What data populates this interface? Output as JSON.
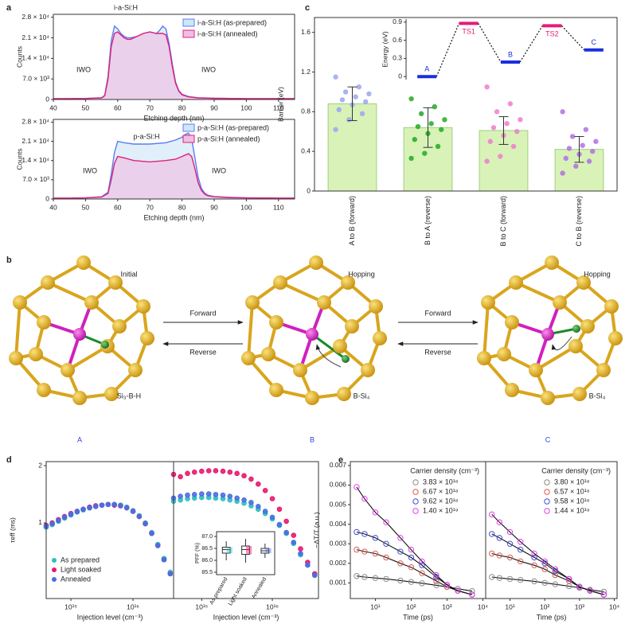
{
  "chart_data": [
    {
      "type": "area",
      "panel": "a",
      "xlabel": "Etching depth (nm)",
      "ylabel": "Counts",
      "xlim": [
        40,
        115
      ],
      "xticks": [
        40,
        50,
        60,
        70,
        80,
        90,
        100,
        110
      ],
      "ylim": [
        0,
        29000
      ],
      "yticks": [
        0,
        {
          "value": 7000,
          "label": "7.0 × 10³"
        },
        {
          "value": 14000,
          "label": "1.4 × 10⁴"
        },
        {
          "value": 21000,
          "label": "2.1 × 10⁴"
        },
        {
          "value": 28000,
          "label": "2.8 × 10⁴"
        }
      ],
      "legend": "upper right",
      "annotations": [
        "IWO",
        "i-a-Si:H",
        "IWO"
      ],
      "x": [
        40,
        45,
        50,
        55,
        56,
        57,
        58,
        59,
        60,
        61,
        62,
        63,
        64,
        66,
        68,
        70,
        72,
        73,
        74,
        75,
        76,
        77,
        78,
        79,
        80,
        82,
        85,
        90,
        100,
        110,
        115
      ],
      "series": [
        {
          "name": "i-a-Si:H (as-prepared)",
          "color": "#5b7cf0",
          "fill": "#cfe6f7",
          "values": [
            300,
            300,
            350,
            600,
            1500,
            8000,
            20000,
            25000,
            24000,
            22500,
            21500,
            21000,
            21000,
            21500,
            22500,
            23000,
            22500,
            23500,
            25000,
            24000,
            19000,
            12000,
            6000,
            3000,
            1800,
            1000,
            600,
            400,
            300,
            300,
            300
          ]
        },
        {
          "name": "i-a-Si:H (annealed)",
          "color": "#e0207a",
          "fill": "#efbfe3",
          "values": [
            300,
            300,
            350,
            550,
            1300,
            7000,
            18000,
            22500,
            23000,
            22000,
            21000,
            20500,
            20500,
            21500,
            22500,
            23000,
            22500,
            22500,
            22500,
            22000,
            18000,
            11000,
            5500,
            2800,
            1600,
            900,
            550,
            400,
            300,
            300,
            300
          ]
        }
      ]
    },
    {
      "type": "area",
      "xlabel": "Etching depth (nm)",
      "ylabel": "Counts",
      "xlim": [
        40,
        115
      ],
      "xticks": [
        40,
        50,
        60,
        70,
        80,
        90,
        100,
        110
      ],
      "ylim": [
        0,
        29000
      ],
      "yticks": [
        0,
        {
          "value": 7000,
          "label": "7.0 × 10³"
        },
        {
          "value": 14000,
          "label": "1.4 × 10⁴"
        },
        {
          "value": 21000,
          "label": "2.1 × 10⁴"
        },
        {
          "value": 28000,
          "label": "2.8 × 10⁴"
        }
      ],
      "legend": "upper right",
      "annotations": [
        "IWO",
        "p-a-Si:H",
        "IWO"
      ],
      "x": [
        40,
        45,
        50,
        55,
        57,
        58,
        59,
        60,
        62,
        65,
        70,
        75,
        78,
        80,
        81,
        82,
        83,
        84,
        85,
        86,
        87,
        88,
        90,
        95,
        100,
        110,
        115
      ],
      "series": [
        {
          "name": "p-a-Si:H (as-prepared)",
          "color": "#5b7cf0",
          "fill": "#cfe6f7",
          "values": [
            300,
            300,
            400,
            800,
            2500,
            9000,
            17000,
            21000,
            20500,
            20000,
            20000,
            20500,
            21500,
            22500,
            23500,
            24000,
            22000,
            15000,
            8000,
            4000,
            2200,
            1400,
            900,
            600,
            400,
            300,
            300
          ]
        },
        {
          "name": "p-a-Si:H (annealed)",
          "color": "#e0207a",
          "fill": "#efbfe3",
          "values": [
            300,
            300,
            400,
            700,
            2000,
            7000,
            13000,
            15500,
            15000,
            14000,
            13500,
            14000,
            14500,
            15500,
            16000,
            16500,
            15500,
            11000,
            6000,
            3200,
            1800,
            1200,
            800,
            500,
            400,
            300,
            300
          ]
        }
      ]
    },
    {
      "type": "bar",
      "panel": "c",
      "ylabel": "Barrier (eV)",
      "color": "#d8f2b8",
      "ylim": [
        0,
        1.75
      ],
      "yticks": [
        0,
        0.4,
        0.8,
        1.2,
        1.6
      ],
      "categories": [
        "A to B (forward)",
        "B to A (reverse)",
        "B to C (forward)",
        "C to B (reverse)"
      ],
      "values": [
        0.88,
        0.64,
        0.61,
        0.42
      ],
      "errors": [
        0.17,
        0.2,
        0.14,
        0.13
      ],
      "point_colors": [
        "#9aa6f2",
        "#22aa22",
        "#f07ccc",
        "#b070e0"
      ],
      "points": [
        [
          1.15,
          1.05,
          1.0,
          0.98,
          0.95,
          0.92,
          0.9,
          0.87,
          0.82,
          0.78,
          0.72,
          0.62
        ],
        [
          0.93,
          0.85,
          0.78,
          0.72,
          0.68,
          0.65,
          0.62,
          0.58,
          0.52,
          0.45,
          0.38,
          0.33
        ],
        [
          1.05,
          0.88,
          0.8,
          0.72,
          0.68,
          0.64,
          0.6,
          0.56,
          0.5,
          0.45,
          0.35,
          0.3
        ],
        [
          0.8,
          0.62,
          0.55,
          0.5,
          0.46,
          0.43,
          0.4,
          0.37,
          0.33,
          0.3,
          0.25,
          0.18
        ]
      ]
    },
    {
      "type": "energy",
      "ylabel": "Energy (eV)",
      "ylim": [
        -0.05,
        0.95
      ],
      "yticks": [
        0,
        0.3,
        0.6,
        0.9
      ],
      "categories": [
        "A",
        "TS1",
        "B",
        "TS2",
        "C"
      ],
      "values": [
        0,
        0.88,
        0.24,
        0.84,
        0.44
      ],
      "colors": [
        "#1a2ee0",
        "#e8197a",
        "#1a2ee0",
        "#e8197a",
        "#1a2ee0"
      ]
    },
    {
      "type": "scatter",
      "panel": "d",
      "xlabel": "Injection level (cm⁻³)",
      "ylabel": "τeff (ms)",
      "xscale": "log",
      "yscale": "log",
      "xlim": [
        400000000000000.0,
        4.5e+16
      ],
      "ylim": [
        0.4,
        2.1
      ],
      "xticks": [
        {
          "value": 1000000000000000.0,
          "label": "10¹⁵"
        },
        {
          "value": 1e+16,
          "label": "10¹⁶"
        }
      ],
      "yticks": [
        1,
        2
      ],
      "legend": "lower left",
      "x": [
        400000000000000.0,
        500000000000000.0,
        630000000000000.0,
        790000000000000.0,
        1000000000000000.0,
        1260000000000000.0,
        1580000000000000.0,
        2000000000000000.0,
        2510000000000000.0,
        3160000000000000.0,
        3980000000000000.0,
        5010000000000000.0,
        6310000000000000.0,
        7940000000000000.0,
        1e+16,
        1.26e+16,
        1.58e+16,
        2e+16,
        2.51e+16,
        3.16e+16,
        3.98e+16
      ],
      "series": [
        {
          "name": "As prepared",
          "color": "#2bbfbf",
          "values": [
            0.95,
            0.98,
            1.02,
            1.06,
            1.1,
            1.14,
            1.17,
            1.2,
            1.22,
            1.24,
            1.25,
            1.25,
            1.24,
            1.21,
            1.16,
            1.09,
            1.0,
            0.89,
            0.77,
            0.65,
            0.55
          ]
        },
        {
          "name": "Light soaked",
          "color": "#e8196e",
          "values": [
            0.97,
            1.0,
            1.04,
            1.08,
            1.12,
            1.15,
            1.18,
            1.21,
            1.23,
            1.24,
            1.25,
            1.24,
            1.23,
            1.2,
            1.15,
            1.08,
            0.99,
            0.88,
            0.76,
            0.64,
            0.54
          ]
        },
        {
          "name": "Annealed",
          "color": "#4a6fe0",
          "values": [
            0.96,
            0.99,
            1.03,
            1.07,
            1.11,
            1.15,
            1.18,
            1.2,
            1.22,
            1.24,
            1.25,
            1.25,
            1.23,
            1.2,
            1.15,
            1.08,
            0.99,
            0.88,
            0.76,
            0.64,
            0.54
          ]
        }
      ]
    },
    {
      "type": "scatter",
      "xlabel": "Injection level (cm⁻³)",
      "xscale": "log",
      "yscale": "log",
      "xlim": [
        400000000000000.0,
        4.5e+16
      ],
      "ylim": [
        0.4,
        2.1
      ],
      "xticks": [
        {
          "value": 1000000000000000.0,
          "label": "10¹⁵"
        },
        {
          "value": 1e+16,
          "label": "10¹⁶"
        }
      ],
      "x": [
        400000000000000.0,
        500000000000000.0,
        630000000000000.0,
        790000000000000.0,
        1000000000000000.0,
        1260000000000000.0,
        1580000000000000.0,
        2000000000000000.0,
        2510000000000000.0,
        3160000000000000.0,
        3980000000000000.0,
        5010000000000000.0,
        6310000000000000.0,
        7940000000000000.0,
        1e+16,
        1.26e+16,
        1.58e+16,
        2e+16,
        2.51e+16,
        3.16e+16,
        3.98e+16
      ],
      "series": [
        {
          "color": "#2bbfbf",
          "values": [
            1.3,
            1.32,
            1.34,
            1.35,
            1.36,
            1.36,
            1.35,
            1.34,
            1.32,
            1.3,
            1.27,
            1.23,
            1.18,
            1.12,
            1.05,
            0.97,
            0.88,
            0.78,
            0.68,
            0.6,
            0.53
          ]
        },
        {
          "color": "#e8196e",
          "values": [
            1.8,
            1.75,
            1.82,
            1.85,
            1.87,
            1.88,
            1.88,
            1.87,
            1.85,
            1.82,
            1.77,
            1.7,
            1.6,
            1.48,
            1.34,
            1.18,
            1.02,
            0.86,
            0.73,
            0.62,
            0.54
          ]
        },
        {
          "color": "#4a6fe0",
          "values": [
            1.35,
            1.38,
            1.4,
            1.41,
            1.42,
            1.42,
            1.41,
            1.4,
            1.38,
            1.35,
            1.32,
            1.28,
            1.22,
            1.15,
            1.07,
            0.98,
            0.89,
            0.79,
            0.69,
            0.6,
            0.53
          ]
        }
      ]
    },
    {
      "type": "box",
      "ylabel": "PFF (%)",
      "ylim": [
        85.4,
        87.2
      ],
      "yticks": [
        85.5,
        {
          "value": 86,
          "label": "86.0"
        },
        86.5,
        {
          "value": 87,
          "label": "87.0"
        }
      ],
      "categories": [
        "As prepared",
        "Light soaked",
        "Annealed"
      ],
      "colors": [
        "#2bbfbf",
        "#e8196e",
        "#4a6fe0"
      ],
      "boxes": [
        {
          "min": 86.0,
          "q1": 86.3,
          "median": 86.45,
          "q3": 86.55,
          "max": 86.8
        },
        {
          "min": 85.9,
          "q1": 86.25,
          "median": 86.45,
          "q3": 86.6,
          "max": 86.9
        },
        {
          "min": 86.1,
          "q1": 86.3,
          "median": 86.4,
          "q3": 86.5,
          "max": 86.7
        }
      ]
    },
    {
      "type": "scatter",
      "panel": "e",
      "marker": "open",
      "fit_lines": true,
      "xlabel": "Time (ps)",
      "ylabel": "−ΔT/T (a.u.)",
      "legend": "upper right",
      "legend_title": "Carrier density (cm⁻³)",
      "xscale": "log",
      "xlim": [
        2,
        12000
      ],
      "ylim": [
        0.0002,
        0.0072
      ],
      "xticks": [
        {
          "value": 10,
          "label": "10¹"
        },
        {
          "value": 100,
          "label": "10²"
        },
        {
          "value": 1000,
          "label": "10³"
        },
        {
          "value": 10000,
          "label": "10⁴"
        }
      ],
      "yticks": [
        0.001,
        0.002,
        0.003,
        0.004,
        0.005,
        0.006,
        0.007
      ],
      "x": [
        3,
        5,
        10,
        20,
        50,
        100,
        200,
        500,
        1000,
        2000,
        5000
      ],
      "series": [
        {
          "name": "3.83 × 10¹⁸",
          "color": "#8c8c8c",
          "values": [
            0.00135,
            0.0013,
            0.00125,
            0.0012,
            0.00112,
            0.00105,
            0.00098,
            0.00088,
            0.0008,
            0.0007,
            0.00058
          ]
        },
        {
          "name": "6.67 × 10¹⁸",
          "color": "#e05a50",
          "values": [
            0.0027,
            0.0026,
            0.0025,
            0.0023,
            0.002,
            0.0018,
            0.0015,
            0.0011,
            0.0008,
            0.0006,
            0.0004
          ]
        },
        {
          "name": "9.62 × 10¹⁸",
          "color": "#4050d8",
          "values": [
            0.0036,
            0.0035,
            0.0033,
            0.003,
            0.0026,
            0.0023,
            0.0019,
            0.0013,
            0.0009,
            0.0006,
            0.0004
          ]
        },
        {
          "name": "1.40 × 10¹⁹",
          "color": "#e040e8",
          "values": [
            0.0059,
            0.0053,
            0.0046,
            0.0041,
            0.0033,
            0.0027,
            0.0021,
            0.0014,
            0.0009,
            0.0006,
            0.0004
          ]
        }
      ]
    },
    {
      "type": "scatter",
      "marker": "open",
      "fit_lines": true,
      "xlabel": "Time (ps)",
      "legend": "upper right",
      "legend_title": "Carrier density (cm⁻³)",
      "xscale": "log",
      "xlim": [
        2,
        12000
      ],
      "ylim": [
        0.0002,
        0.0072
      ],
      "xticks": [
        {
          "value": 10,
          "label": "10¹"
        },
        {
          "value": 100,
          "label": "10²"
        },
        {
          "value": 1000,
          "label": "10³"
        },
        {
          "value": 10000,
          "label": "10⁴"
        }
      ],
      "x": [
        3,
        5,
        10,
        20,
        50,
        100,
        200,
        500,
        1000,
        2000,
        5000
      ],
      "series": [
        {
          "name": "3.80 × 10¹⁸",
          "color": "#8c8c8c",
          "values": [
            0.0013,
            0.00125,
            0.0012,
            0.00115,
            0.00108,
            0.001,
            0.00093,
            0.00083,
            0.00075,
            0.00065,
            0.00055
          ]
        },
        {
          "name": "6.57 × 10¹⁸",
          "color": "#e05a50",
          "values": [
            0.0025,
            0.0024,
            0.0023,
            0.0021,
            0.0019,
            0.0017,
            0.0014,
            0.0011,
            0.0008,
            0.0006,
            0.0004
          ]
        },
        {
          "name": "9.58 × 10¹⁸",
          "color": "#4050d8",
          "values": [
            0.0035,
            0.0033,
            0.003,
            0.0027,
            0.0023,
            0.002,
            0.0016,
            0.0012,
            0.0008,
            0.0006,
            0.0004
          ]
        },
        {
          "name": "1.44 × 10¹⁹",
          "color": "#e040e8",
          "values": [
            0.0045,
            0.0041,
            0.0036,
            0.0031,
            0.0025,
            0.0021,
            0.0017,
            0.0012,
            0.0008,
            0.0006,
            0.0004
          ]
        }
      ]
    }
  ],
  "diagram": {
    "panel": "b",
    "structures": [
      {
        "caption": "Initial",
        "formula": "Si₃-B-H",
        "state": "A"
      },
      {
        "caption": "Hopping",
        "formula": "B-Si₄",
        "state": "B"
      },
      {
        "caption": "Hopping",
        "formula": "B-Si₄",
        "state": "C"
      }
    ],
    "arrows": [
      {
        "forward": "Forward",
        "reverse": "Reverse"
      },
      {
        "forward": "Forward",
        "reverse": "Reverse"
      }
    ]
  }
}
